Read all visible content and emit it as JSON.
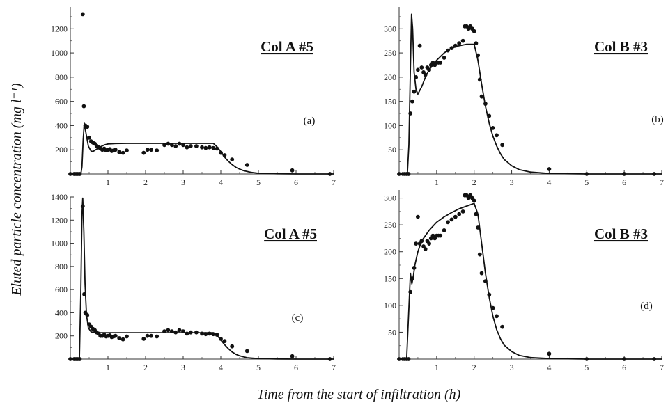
{
  "figure": {
    "ylabel": "Eluted particle concentration (mg l⁻¹)",
    "xlabel": "Time from the start of infiltration (h)"
  },
  "chart_data": [
    {
      "type": "scatter",
      "title": "Col A #5",
      "tag": "(a)",
      "xlim": [
        0,
        7
      ],
      "ylim": [
        0,
        1380
      ],
      "x_ticks": [
        1,
        2,
        3,
        4,
        5,
        6,
        7
      ],
      "y_ticks": [
        200,
        400,
        600,
        800,
        1000,
        1200
      ],
      "series": [
        {
          "kind": "points",
          "x": [
            0.0,
            0.1,
            0.15,
            0.2,
            0.25,
            0.33,
            0.36,
            0.4,
            0.45,
            0.5,
            0.55,
            0.6,
            0.65,
            0.7,
            0.75,
            0.8,
            0.85,
            0.9,
            0.95,
            1.0,
            1.05,
            1.1,
            1.15,
            1.2,
            1.3,
            1.4,
            1.5,
            1.95,
            2.05,
            2.15,
            2.3,
            2.5,
            2.6,
            2.7,
            2.8,
            2.9,
            3.0,
            3.1,
            3.2,
            3.35,
            3.5,
            3.6,
            3.7,
            3.8,
            3.9,
            4.0,
            4.1,
            4.3,
            4.7,
            5.9,
            6.9
          ],
          "y": [
            0,
            0,
            0,
            0,
            0,
            1320,
            560,
            400,
            390,
            300,
            270,
            260,
            250,
            230,
            220,
            210,
            200,
            210,
            195,
            200,
            205,
            190,
            195,
            200,
            180,
            175,
            195,
            175,
            200,
            200,
            195,
            240,
            250,
            240,
            230,
            250,
            240,
            220,
            230,
            230,
            220,
            215,
            220,
            215,
            210,
            175,
            155,
            120,
            75,
            30,
            0
          ]
        },
        {
          "kind": "model",
          "x": [
            0.0,
            0.28,
            0.31,
            0.34,
            0.37,
            0.42,
            0.48,
            0.55,
            0.6,
            0.7,
            0.8,
            0.9,
            1.0,
            1.2,
            1.5,
            2.0,
            2.5,
            3.0,
            3.5,
            3.8,
            3.9,
            4.0,
            4.1,
            4.2,
            4.3,
            4.4,
            4.5,
            4.6,
            4.8,
            5.0,
            5.5,
            6.0,
            7.0
          ],
          "y": [
            0,
            0,
            60,
            280,
            420,
            330,
            230,
            190,
            185,
            205,
            225,
            240,
            248,
            252,
            253,
            253,
            253,
            253,
            253,
            253,
            225,
            185,
            140,
            105,
            78,
            55,
            40,
            28,
            14,
            6,
            2,
            0,
            0
          ]
        }
      ]
    },
    {
      "type": "scatter",
      "title": "Col B #3",
      "tag": "(b)",
      "xlim": [
        0,
        7
      ],
      "ylim": [
        0,
        345
      ],
      "x_ticks": [
        1,
        2,
        3,
        4,
        5,
        6,
        7
      ],
      "y_ticks": [
        50,
        100,
        150,
        200,
        250,
        300
      ],
      "series": [
        {
          "kind": "points",
          "x": [
            0.0,
            0.1,
            0.15,
            0.2,
            0.25,
            0.3,
            0.35,
            0.4,
            0.45,
            0.5,
            0.55,
            0.6,
            0.65,
            0.7,
            0.75,
            0.8,
            0.85,
            0.9,
            0.95,
            1.0,
            1.05,
            1.1,
            1.2,
            1.3,
            1.4,
            1.5,
            1.6,
            1.7,
            1.75,
            1.8,
            1.85,
            1.9,
            1.95,
            2.0,
            2.05,
            2.1,
            2.15,
            2.2,
            2.3,
            2.4,
            2.5,
            2.6,
            2.75,
            4.0,
            5.0,
            6.0,
            6.8
          ],
          "y": [
            0,
            0,
            0,
            0,
            0,
            125,
            150,
            170,
            200,
            215,
            265,
            220,
            210,
            205,
            220,
            215,
            225,
            230,
            225,
            230,
            230,
            230,
            240,
            255,
            260,
            265,
            270,
            275,
            305,
            305,
            300,
            305,
            300,
            295,
            270,
            245,
            195,
            160,
            145,
            120,
            95,
            80,
            60,
            10,
            0,
            0,
            0
          ]
        },
        {
          "kind": "model",
          "x": [
            0.0,
            0.22,
            0.26,
            0.3,
            0.33,
            0.36,
            0.4,
            0.45,
            0.5,
            0.6,
            0.7,
            0.8,
            1.0,
            1.2,
            1.4,
            1.6,
            1.8,
            2.0,
            2.1,
            2.2,
            2.3,
            2.4,
            2.5,
            2.6,
            2.7,
            2.8,
            3.0,
            3.2,
            3.5,
            4.0,
            5.0,
            7.0
          ],
          "y": [
            0,
            0,
            60,
            220,
            330,
            300,
            210,
            175,
            165,
            180,
            200,
            215,
            235,
            250,
            260,
            265,
            268,
            268,
            235,
            185,
            140,
            105,
            78,
            58,
            42,
            30,
            17,
            9,
            4,
            1,
            0,
            0
          ]
        }
      ]
    },
    {
      "type": "scatter",
      "title": "Col A #5",
      "tag": "(c)",
      "xlim": [
        0,
        7
      ],
      "ylim": [
        0,
        1400
      ],
      "x_ticks": [
        1,
        2,
        3,
        4,
        5,
        6,
        7
      ],
      "y_ticks": [
        200,
        400,
        600,
        800,
        1000,
        1200,
        1400
      ],
      "series": [
        {
          "kind": "points",
          "x": [
            0.0,
            0.1,
            0.15,
            0.2,
            0.25,
            0.33,
            0.37,
            0.4,
            0.45,
            0.5,
            0.55,
            0.6,
            0.65,
            0.7,
            0.75,
            0.8,
            0.85,
            0.9,
            0.95,
            1.0,
            1.05,
            1.1,
            1.15,
            1.2,
            1.3,
            1.4,
            1.5,
            1.95,
            2.05,
            2.15,
            2.3,
            2.5,
            2.6,
            2.7,
            2.8,
            2.9,
            3.0,
            3.1,
            3.2,
            3.35,
            3.5,
            3.6,
            3.7,
            3.8,
            3.9,
            4.0,
            4.1,
            4.3,
            4.7,
            5.9,
            6.9
          ],
          "y": [
            0,
            0,
            0,
            0,
            0,
            1320,
            560,
            400,
            380,
            300,
            280,
            260,
            250,
            230,
            220,
            200,
            200,
            210,
            195,
            200,
            205,
            190,
            195,
            200,
            180,
            170,
            195,
            175,
            200,
            200,
            195,
            240,
            250,
            240,
            230,
            250,
            240,
            220,
            230,
            230,
            220,
            215,
            220,
            215,
            210,
            175,
            155,
            110,
            70,
            25,
            0
          ]
        },
        {
          "kind": "model",
          "x": [
            0.0,
            0.24,
            0.28,
            0.31,
            0.33,
            0.36,
            0.39,
            0.43,
            0.48,
            0.55,
            0.65,
            0.8,
            1.0,
            1.5,
            2.0,
            2.5,
            3.0,
            3.5,
            3.8,
            3.9,
            4.0,
            4.1,
            4.2,
            4.3,
            4.4,
            4.5,
            4.7,
            5.0,
            5.5,
            6.0,
            7.0
          ],
          "y": [
            0,
            0,
            600,
            1250,
            1390,
            1100,
            650,
            380,
            270,
            235,
            228,
            228,
            228,
            228,
            228,
            228,
            228,
            228,
            228,
            205,
            165,
            125,
            90,
            62,
            42,
            28,
            12,
            4,
            1,
            0,
            0
          ]
        }
      ]
    },
    {
      "type": "scatter",
      "title": "Col B #3",
      "tag": "(d)",
      "xlim": [
        0,
        7
      ],
      "ylim": [
        0,
        315
      ],
      "x_ticks": [
        1,
        2,
        3,
        4,
        5,
        6,
        7
      ],
      "y_ticks": [
        50,
        100,
        150,
        200,
        250,
        300
      ],
      "series": [
        {
          "kind": "points",
          "x": [
            0.0,
            0.1,
            0.15,
            0.2,
            0.25,
            0.3,
            0.35,
            0.4,
            0.45,
            0.5,
            0.55,
            0.6,
            0.65,
            0.7,
            0.75,
            0.8,
            0.85,
            0.9,
            0.95,
            1.0,
            1.05,
            1.1,
            1.2,
            1.3,
            1.4,
            1.5,
            1.6,
            1.7,
            1.75,
            1.8,
            1.85,
            1.9,
            1.95,
            2.0,
            2.05,
            2.1,
            2.15,
            2.2,
            2.3,
            2.4,
            2.5,
            2.6,
            2.75,
            4.0,
            5.0,
            6.0,
            6.8
          ],
          "y": [
            0,
            0,
            0,
            0,
            0,
            125,
            150,
            170,
            215,
            265,
            215,
            220,
            210,
            205,
            220,
            215,
            225,
            230,
            225,
            230,
            230,
            230,
            240,
            255,
            260,
            265,
            270,
            275,
            305,
            305,
            300,
            305,
            300,
            295,
            270,
            245,
            195,
            160,
            145,
            120,
            95,
            80,
            60,
            10,
            0,
            0,
            0
          ]
        },
        {
          "kind": "model",
          "x": [
            0.0,
            0.2,
            0.25,
            0.3,
            0.34,
            0.38,
            0.42,
            0.5,
            0.6,
            0.8,
            1.0,
            1.2,
            1.4,
            1.6,
            1.8,
            2.0,
            2.1,
            2.2,
            2.3,
            2.4,
            2.5,
            2.6,
            2.7,
            2.8,
            3.0,
            3.2,
            3.5,
            4.0,
            5.0,
            7.0
          ],
          "y": [
            0,
            0,
            80,
            160,
            140,
            155,
            175,
            200,
            220,
            240,
            255,
            265,
            273,
            280,
            285,
            290,
            270,
            215,
            160,
            115,
            80,
            55,
            38,
            26,
            14,
            7,
            3,
            1,
            0,
            0
          ]
        }
      ]
    }
  ]
}
